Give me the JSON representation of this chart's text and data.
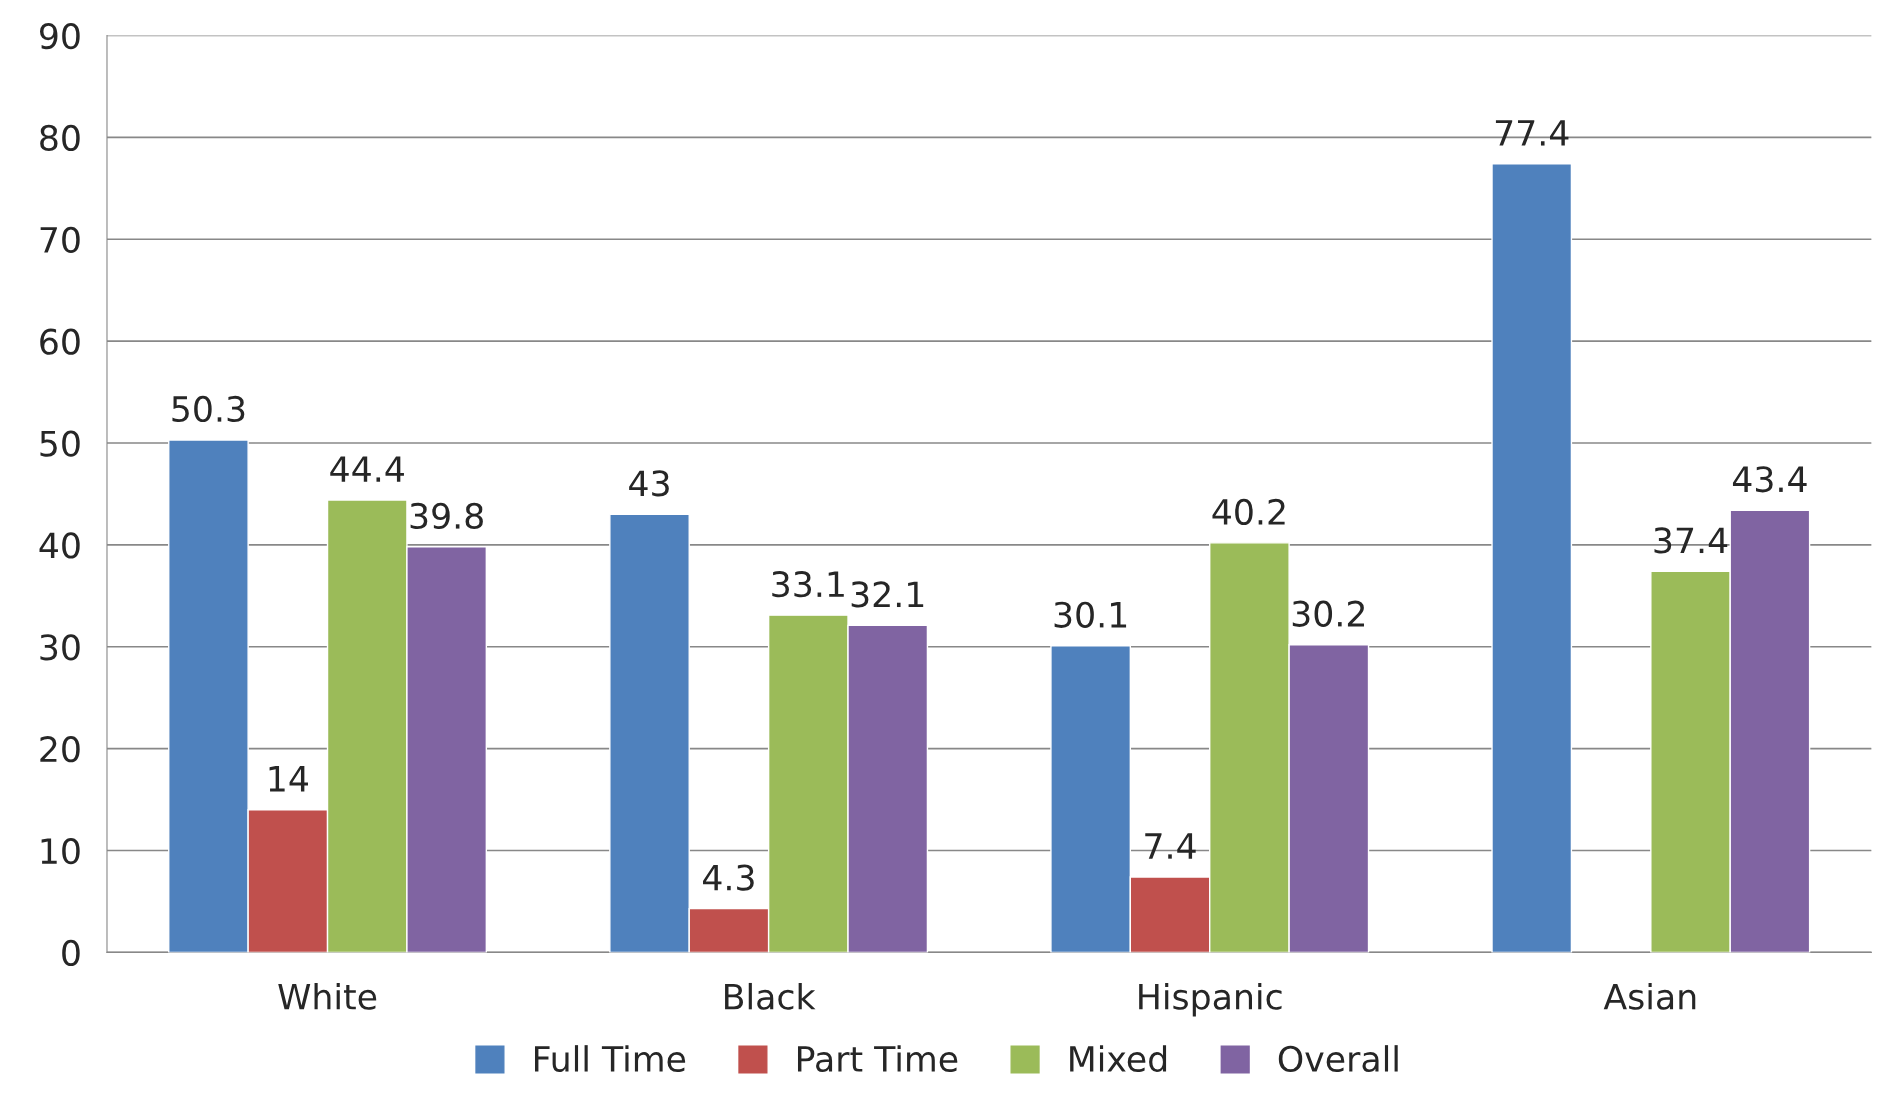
{
  "chart_data": {
    "type": "bar",
    "categories": [
      "White",
      "Black",
      "Hispanic",
      "Asian"
    ],
    "series": [
      {
        "name": "Full Time",
        "color": "#4f81bd",
        "values": [
          50.3,
          43,
          30.1,
          77.4
        ]
      },
      {
        "name": "Part Time",
        "color": "#c0504d",
        "values": [
          14,
          4.3,
          7.4,
          null
        ]
      },
      {
        "name": "Mixed",
        "color": "#9bbb59",
        "values": [
          44.4,
          33.1,
          40.2,
          37.4
        ]
      },
      {
        "name": "Overall",
        "color": "#8064a2",
        "values": [
          39.8,
          32.1,
          30.2,
          43.4
        ]
      }
    ],
    "ylim": [
      0,
      90
    ],
    "yticks": [
      0,
      10,
      20,
      30,
      40,
      50,
      60,
      70,
      80,
      90
    ],
    "grid": "y",
    "legend": "bottom",
    "data_labels": true
  }
}
